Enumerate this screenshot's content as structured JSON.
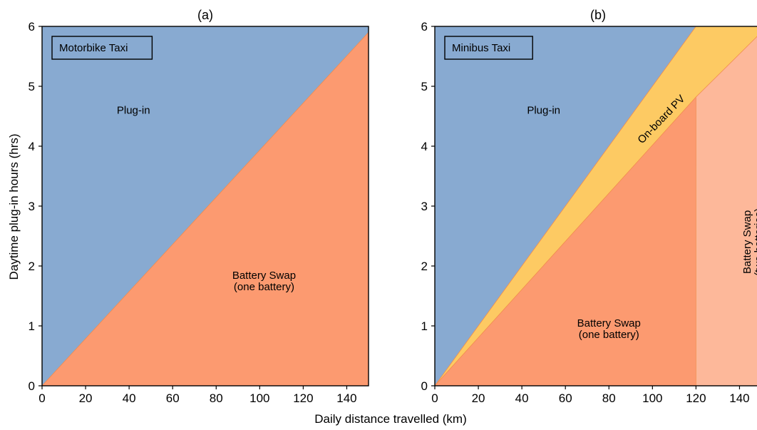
{
  "figure": {
    "xlabel": "Daily distance travelled (km)",
    "ylabel": "Daytime plug-in hours (hrs)"
  },
  "colors": {
    "plug_in": "#88aad1",
    "battery_swap_one": "#fc9a70",
    "on_board_pv": "#fdca63",
    "battery_swap_two": "#fdb89a",
    "boundary_line": "#f08a4b"
  },
  "chart_data": [
    {
      "type": "area",
      "panel": "(a)",
      "box_label": "Motorbike Taxi",
      "xlabel": "",
      "ylabel": "Daytime plug-in hours (hrs)",
      "xlim": [
        0,
        150
      ],
      "ylim": [
        0,
        6
      ],
      "xticks": [
        0,
        20,
        40,
        60,
        80,
        100,
        120,
        140
      ],
      "yticks": [
        0,
        1,
        2,
        3,
        4,
        5,
        6
      ],
      "grid": false,
      "regions": [
        {
          "name": "Plug-in",
          "label_lines": [
            "Plug-in"
          ],
          "color": "plug_in",
          "label_at": [
            42,
            4.6
          ],
          "polygon": [
            [
              0,
              0
            ],
            [
              0,
              6
            ],
            [
              150,
              6
            ],
            [
              150,
              5.9
            ]
          ]
        },
        {
          "name": "Battery Swap (one battery)",
          "label_lines": [
            "Battery Swap",
            "(one battery)"
          ],
          "color": "battery_swap_one",
          "label_at": [
            102,
            1.75
          ],
          "polygon": [
            [
              0,
              0
            ],
            [
              150,
              5.9
            ],
            [
              150,
              0
            ]
          ]
        }
      ]
    },
    {
      "type": "area",
      "panel": "(b)",
      "box_label": "Minibus Taxi",
      "xlabel": "",
      "ylabel": "",
      "xlim": [
        0,
        150
      ],
      "ylim": [
        0,
        6
      ],
      "xticks": [
        0,
        20,
        40,
        60,
        80,
        100,
        120,
        140
      ],
      "yticks": [
        0,
        1,
        2,
        3,
        4,
        5,
        6
      ],
      "grid": false,
      "regions": [
        {
          "name": "Plug-in",
          "label_lines": [
            "Plug-in"
          ],
          "color": "plug_in",
          "label_at": [
            50,
            4.6
          ],
          "polygon": [
            [
              0,
              0
            ],
            [
              0,
              6
            ],
            [
              120,
              6
            ]
          ]
        },
        {
          "name": "On-board PV",
          "label_lines": [
            "On-board PV"
          ],
          "color": "on_board_pv",
          "label_at": [
            104,
            4.45
          ],
          "rotate_deg": -46,
          "polygon": [
            [
              0,
              0
            ],
            [
              120,
              6
            ],
            [
              150,
              6
            ],
            [
              150,
              5.9
            ],
            [
              120,
              4.82
            ]
          ]
        },
        {
          "name": "Battery Swap (one battery)",
          "label_lines": [
            "Battery Swap",
            "(one battery)"
          ],
          "color": "battery_swap_one",
          "label_at": [
            80,
            0.95
          ],
          "polygon": [
            [
              0,
              0
            ],
            [
              120,
              4.82
            ],
            [
              120,
              0
            ]
          ]
        },
        {
          "name": "Battery Swap (two batteries)",
          "label_lines": [
            "Battery Swap",
            "(two batteries)"
          ],
          "color": "battery_swap_two",
          "label_at": [
            146,
            2.4
          ],
          "rotate_deg": -90,
          "polygon": [
            [
              120,
              0
            ],
            [
              120,
              4.82
            ],
            [
              150,
              5.9
            ],
            [
              150,
              0
            ]
          ]
        }
      ]
    }
  ]
}
